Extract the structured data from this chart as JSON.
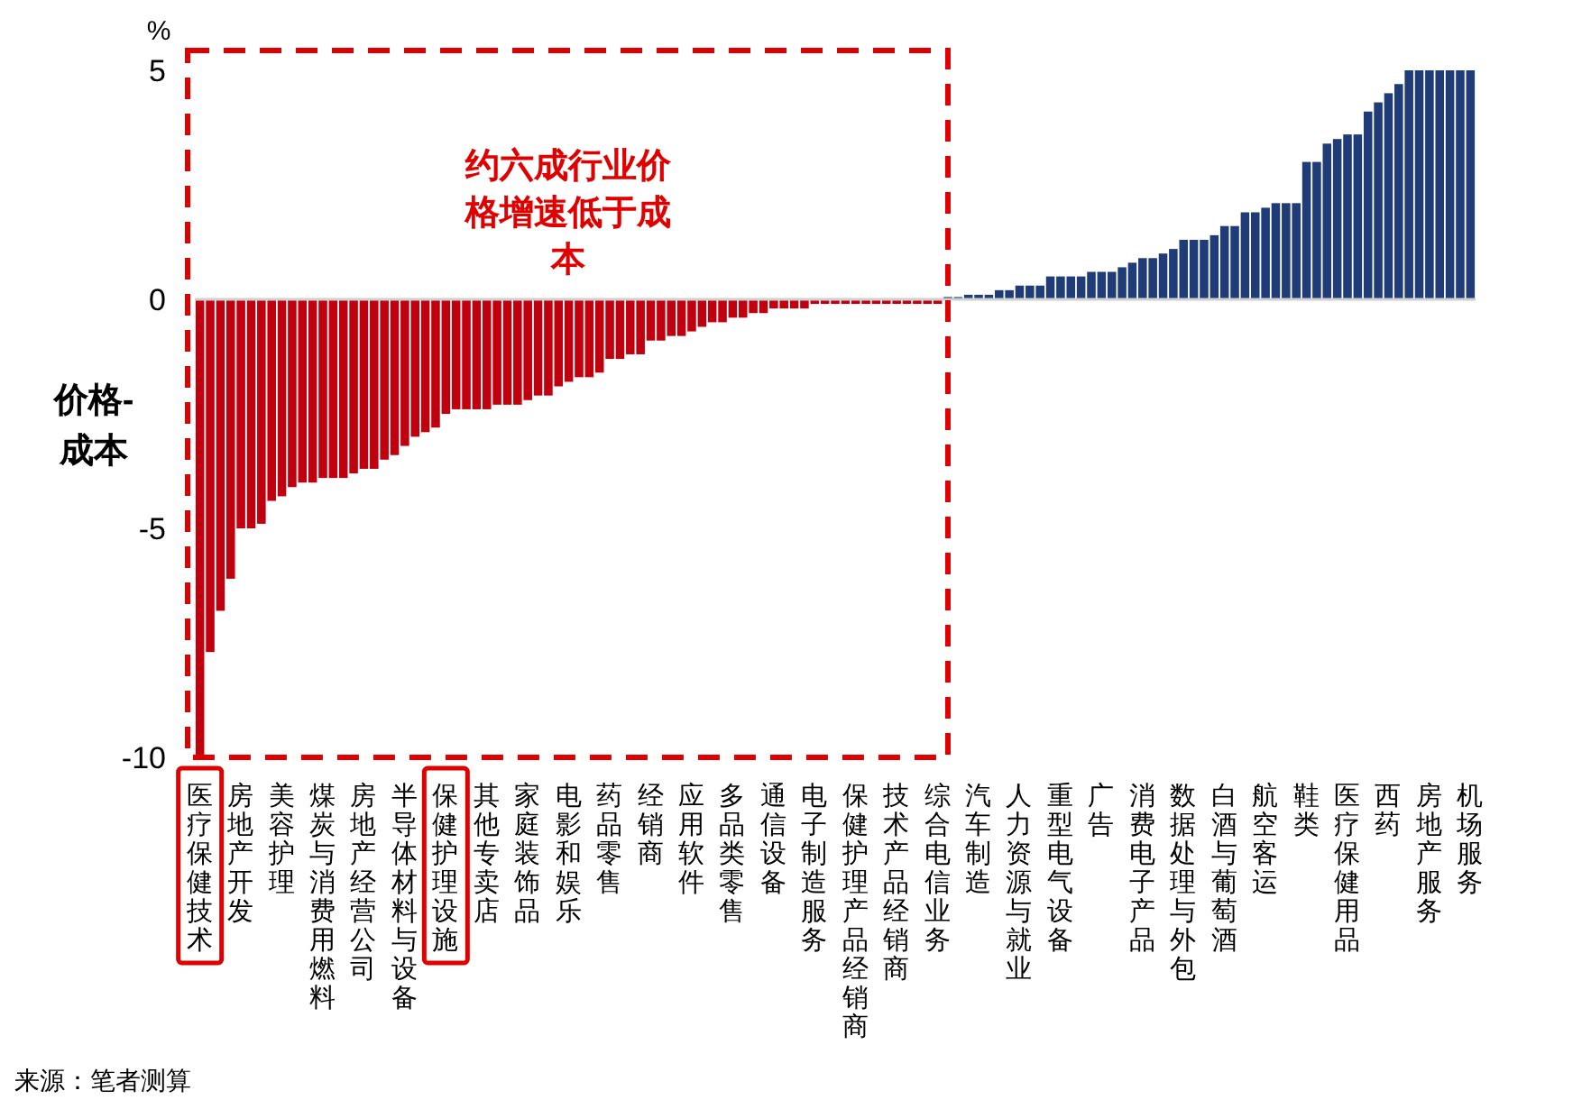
{
  "chart_data": {
    "type": "bar",
    "ylabel": "价格-\n成本",
    "annotations": [
      "约六成行业价格增速低于成本",
      "来源：笔者测算",
      "%"
    ],
    "categories": [
      "医疗保健技术",
      null,
      null,
      null,
      "房地产开发",
      null,
      null,
      null,
      "美容护理",
      null,
      null,
      null,
      "煤炭与消费用燃料",
      null,
      null,
      null,
      "房地产经营公司",
      null,
      null,
      null,
      "半导体材料与设备",
      null,
      null,
      null,
      "保健护理设施",
      null,
      null,
      null,
      "其他专卖店",
      null,
      null,
      null,
      "家庭装饰品",
      null,
      null,
      null,
      "电影和娱乐",
      null,
      null,
      null,
      "药品零售",
      null,
      null,
      null,
      "经销商",
      null,
      null,
      null,
      "应用软件",
      null,
      null,
      null,
      "多品类零售",
      null,
      null,
      null,
      "通信设备",
      null,
      null,
      null,
      "电子制造服务",
      null,
      null,
      null,
      "保健护理产品经销商",
      null,
      null,
      null,
      "技术产品经销商",
      null,
      null,
      null,
      "综合电信业务",
      null,
      null,
      null,
      "汽车制造",
      null,
      null,
      null,
      "人力资源与就业",
      null,
      null,
      null,
      "重型电气设备",
      null,
      null,
      null,
      "广告",
      null,
      null,
      null,
      "消费电子产品",
      null,
      null,
      null,
      "数据处理与外包",
      null,
      null,
      null,
      "白酒与葡萄酒",
      null,
      null,
      null,
      "航空客运",
      null,
      null,
      null,
      "鞋类",
      null,
      null,
      null,
      "医疗保健用品",
      null,
      null,
      null,
      "西药",
      null,
      null,
      null,
      "房地产服务",
      null,
      null,
      null,
      "机场服务"
    ],
    "values": [
      -10,
      -7.7,
      -6.8,
      -6.1,
      -5.0,
      -5.0,
      -4.9,
      -4.4,
      -4.3,
      -4.1,
      -4.0,
      -4.0,
      -3.9,
      -3.9,
      -3.9,
      -3.8,
      -3.7,
      -3.7,
      -3.5,
      -3.4,
      -3.2,
      -3.0,
      -2.9,
      -2.8,
      -2.5,
      -2.4,
      -2.4,
      -2.4,
      -2.4,
      -2.3,
      -2.3,
      -2.3,
      -2.2,
      -2.1,
      -2.1,
      -1.9,
      -1.8,
      -1.7,
      -1.7,
      -1.6,
      -1.3,
      -1.3,
      -1.2,
      -1.2,
      -0.9,
      -0.9,
      -0.8,
      -0.8,
      -0.7,
      -0.6,
      -0.5,
      -0.5,
      -0.4,
      -0.4,
      -0.3,
      -0.3,
      -0.2,
      -0.2,
      -0.2,
      -0.2,
      -0.1,
      -0.1,
      -0.1,
      -0.1,
      -0.1,
      -0.1,
      -0.1,
      -0.1,
      -0.1,
      -0.1,
      -0.1,
      -0.1,
      -0.1,
      0.05,
      0.05,
      0.1,
      0.1,
      0.1,
      0.2,
      0.2,
      0.3,
      0.3,
      0.3,
      0.5,
      0.5,
      0.5,
      0.5,
      0.6,
      0.6,
      0.6,
      0.7,
      0.8,
      0.9,
      0.9,
      1.0,
      1.1,
      1.3,
      1.3,
      1.3,
      1.4,
      1.6,
      1.6,
      1.9,
      1.9,
      2.0,
      2.1,
      2.1,
      2.1,
      3.0,
      3.0,
      3.4,
      3.5,
      3.6,
      3.6,
      4.1,
      4.3,
      4.5,
      4.7,
      5,
      5,
      5,
      5,
      5,
      5,
      5
    ],
    "colors": [
      "#c0000f",
      "#c0000f",
      "#c0000f",
      "#c0000f",
      "#c0000f",
      "#c0000f",
      "#c0000f",
      "#c0000f",
      "#c0000f",
      "#c0000f",
      "#c0000f",
      "#c0000f",
      "#c0000f",
      "#c0000f",
      "#c0000f",
      "#c0000f",
      "#c0000f",
      "#c0000f",
      "#c0000f",
      "#c0000f",
      "#c0000f",
      "#c0000f",
      "#c0000f",
      "#c0000f",
      "#c0000f",
      "#c0000f",
      "#c0000f",
      "#c0000f",
      "#c0000f",
      "#c0000f",
      "#c0000f",
      "#c0000f",
      "#c0000f",
      "#c0000f",
      "#c0000f",
      "#c0000f",
      "#c0000f",
      "#c0000f",
      "#c0000f",
      "#c0000f",
      "#c0000f",
      "#c0000f",
      "#c0000f",
      "#c0000f",
      "#c0000f",
      "#c0000f",
      "#c0000f",
      "#c0000f",
      "#c0000f",
      "#c0000f",
      "#c0000f",
      "#c0000f",
      "#c0000f",
      "#c0000f",
      "#c0000f",
      "#c0000f",
      "#c0000f",
      "#c0000f",
      "#c0000f",
      "#c0000f",
      "#c0000f",
      "#c0000f",
      "#c0000f",
      "#c0000f",
      "#c0000f",
      "#c0000f",
      "#c0000f",
      "#c0000f",
      "#c0000f",
      "#c0000f",
      "#c0000f",
      "#c0000f",
      "#c0000f",
      "#1f3c78",
      "#1f3c78",
      "#1f3c78",
      "#1f3c78",
      "#1f3c78",
      "#1f3c78",
      "#1f3c78",
      "#1f3c78",
      "#1f3c78",
      "#1f3c78",
      "#1f3c78",
      "#1f3c78",
      "#1f3c78",
      "#1f3c78",
      "#1f3c78",
      "#1f3c78",
      "#1f3c78",
      "#1f3c78",
      "#1f3c78",
      "#1f3c78",
      "#1f3c78",
      "#1f3c78",
      "#1f3c78",
      "#1f3c78",
      "#1f3c78",
      "#1f3c78",
      "#1f3c78",
      "#1f3c78",
      "#1f3c78",
      "#1f3c78",
      "#1f3c78",
      "#1f3c78",
      "#1f3c78",
      "#1f3c78",
      "#1f3c78",
      "#1f3c78",
      "#1f3c78",
      "#1f3c78",
      "#1f3c78",
      "#1f3c78",
      "#1f3c78",
      "#1f3c78",
      "#1f3c78",
      "#1f3c78",
      "#1f3c78",
      "#1f3c78",
      "#1f3c78",
      "#1f3c78",
      "#1f3c78",
      "#1f3c78",
      "#1f3c78",
      "#1f3c78"
    ],
    "ylim": [
      -10,
      5
    ],
    "yticks": [
      5,
      0,
      -5,
      -10
    ]
  }
}
